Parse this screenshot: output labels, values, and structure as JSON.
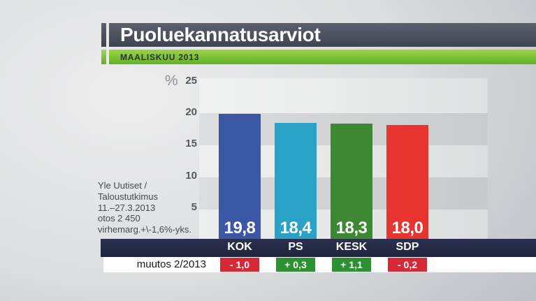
{
  "header": {
    "title": "Puoluekannatusarviot",
    "subtitle": "MAALISKUU 2013"
  },
  "source": {
    "lines": [
      "Yle Uutiset /",
      "Taloustutkimus",
      "11.–27.3.2013",
      "otos 2 450",
      "virhemarg.+\\-1,6%-yks."
    ]
  },
  "chart_data": {
    "type": "bar",
    "title": "Puoluekannatusarviot",
    "subtitle": "Maaliskuu 2013",
    "categories": [
      "KOK",
      "PS",
      "KESK",
      "SDP"
    ],
    "values": [
      19.8,
      18.4,
      18.3,
      18.0
    ],
    "value_labels": [
      "19,8",
      "18,4",
      "18,3",
      "18,0"
    ],
    "bar_colors": [
      "#3b57a6",
      "#29a2c5",
      "#3e8834",
      "#e8342e"
    ],
    "ylabel": "%",
    "ylim": [
      0,
      25
    ],
    "yticks": [
      25,
      20,
      15,
      10,
      5
    ],
    "ytick_labels": [
      "25",
      "20",
      "15",
      "10",
      "5"
    ],
    "grid": "horizontal-bands-every-5",
    "legend": "none",
    "change_row": {
      "label": "muutos 2/2013",
      "values": [
        "- 1,0",
        "+ 0,3",
        "+ 1,1",
        "- 0,2"
      ],
      "colors": [
        "#d62936",
        "#2d9133",
        "#2d9133",
        "#d62936"
      ]
    }
  },
  "colors": {
    "accent_green": "#6ab62a",
    "title_bar_gray": "#49505c",
    "band_navy": "#252a44",
    "chip_red": "#d62936",
    "chip_green": "#2d9133"
  }
}
